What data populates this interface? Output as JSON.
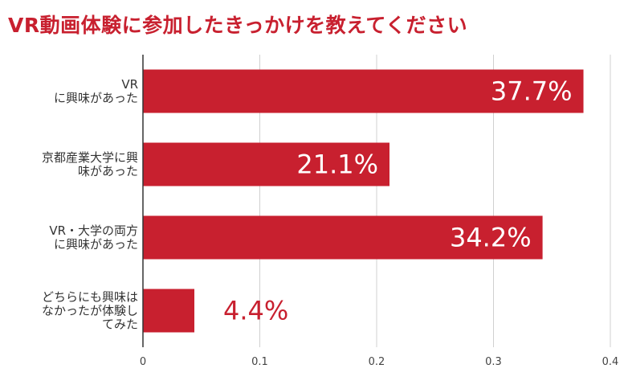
{
  "colors": {
    "bar": "#c8202f",
    "title": "#c8202f",
    "grid": "#d0d0d0",
    "axis": "#333333"
  },
  "chart_data": {
    "type": "bar",
    "orientation": "horizontal",
    "title": "VR動画体験に参加したきっかけを教えてください",
    "categories": [
      [
        "VR",
        "に興味があった"
      ],
      [
        "京都産業大学に興",
        "味があった"
      ],
      [
        "VR・大学の両方",
        "に興味があった"
      ],
      [
        "どちらにも興味は",
        "なかったが体験し",
        "てみた"
      ]
    ],
    "values": [
      0.377,
      0.211,
      0.342,
      0.044
    ],
    "data_labels": [
      "37.7%",
      "21.1%",
      "34.2%",
      "4.4%"
    ],
    "xlim": [
      0,
      0.4
    ],
    "xticks": [
      0,
      0.1,
      0.2,
      0.3,
      0.4
    ],
    "xtick_labels": [
      "0",
      "0.1",
      "0.2",
      "0.3",
      "0.4"
    ],
    "grid": true,
    "legend": "none"
  }
}
